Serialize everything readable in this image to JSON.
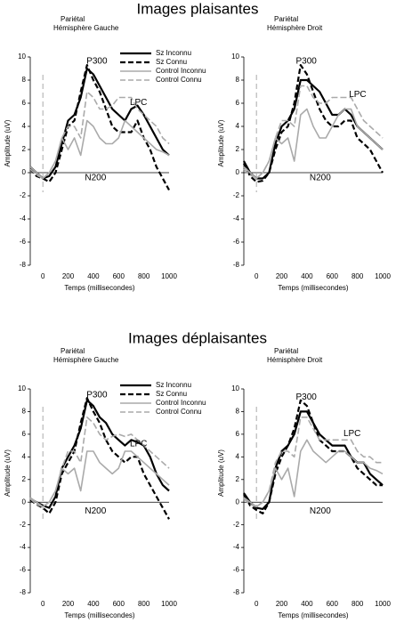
{
  "headings": [
    "Images plaisantes",
    "Images déplaisantes"
  ],
  "chart_data": [
    {
      "type": "line",
      "title": "Pariétal",
      "subtitle": "Hémisphère Gauche",
      "xlabel": "Temps (millisecondes)",
      "ylabel": "Amplitude (uV)",
      "x": [
        -100,
        -50,
        0,
        50,
        100,
        150,
        200,
        250,
        300,
        350,
        400,
        450,
        500,
        550,
        600,
        650,
        700,
        750,
        800,
        850,
        900,
        950,
        1000
      ],
      "xlim": [
        -100,
        1000
      ],
      "ylim": [
        -8,
        10
      ],
      "xticks": [
        0,
        200,
        400,
        600,
        800,
        1000
      ],
      "yticks": [
        -8,
        -6,
        -4,
        -2,
        0,
        2,
        4,
        6,
        8,
        10
      ],
      "legend": "upper right",
      "annotations": [
        "P300",
        "N200",
        "LPC"
      ],
      "series": [
        {
          "name": "Sz Inconnu",
          "color": "#000000",
          "dashed": false,
          "values": [
            0.5,
            0,
            -0.5,
            -0.3,
            0.5,
            2.5,
            4.5,
            5,
            6.5,
            9,
            8.5,
            7.5,
            6.5,
            5.5,
            5,
            4.5,
            5.5,
            5.8,
            5,
            4,
            3,
            2,
            1.5
          ]
        },
        {
          "name": "Sz Connu",
          "color": "#000000",
          "dashed": true,
          "values": [
            0.3,
            -0.3,
            -0.5,
            -0.8,
            0,
            2,
            4,
            4.5,
            7,
            9.3,
            8,
            7,
            5.5,
            4,
            3.5,
            3.5,
            3.5,
            4.5,
            3,
            2,
            0.5,
            -0.5,
            -1.5
          ]
        },
        {
          "name": "Control Inconnu",
          "color": "#aaaaaa",
          "dashed": false,
          "values": [
            0.5,
            0,
            -0.5,
            0,
            1,
            3,
            2,
            3,
            1.5,
            4.5,
            4,
            3,
            2.5,
            2.5,
            3,
            4.5,
            4,
            3.5,
            3,
            2.5,
            2,
            1.8,
            1.5
          ]
        },
        {
          "name": "Control Connu",
          "color": "#aaaaaa",
          "dashed": true,
          "values": [
            0.3,
            -0.2,
            -0.5,
            0,
            1,
            3,
            4,
            4,
            3,
            7,
            6.5,
            5.5,
            5.5,
            5.8,
            6.5,
            6.5,
            6.5,
            5.5,
            5,
            4.5,
            4,
            3,
            2.5
          ]
        }
      ]
    },
    {
      "type": "line",
      "title": "Pariétal",
      "subtitle": "Hémisphère Droit",
      "xlabel": "Temps (millisecondes)",
      "ylabel": "Amplitude (uV)",
      "x": [
        -100,
        -50,
        0,
        50,
        100,
        150,
        200,
        250,
        300,
        350,
        400,
        450,
        500,
        550,
        600,
        650,
        700,
        750,
        800,
        850,
        900,
        950,
        1000
      ],
      "xlim": [
        -100,
        1000
      ],
      "ylim": [
        -8,
        10
      ],
      "xticks": [
        0,
        200,
        400,
        600,
        800,
        1000
      ],
      "yticks": [
        -8,
        -6,
        -4,
        -2,
        0,
        2,
        4,
        6,
        8,
        10
      ],
      "annotations": [
        "P300",
        "N200",
        "LPC"
      ],
      "series": [
        {
          "color": "#000000",
          "dashed": false,
          "values": [
            1,
            0,
            -0.5,
            -0.5,
            0,
            2.5,
            4,
            4.5,
            5.5,
            8,
            8,
            7.5,
            7,
            6,
            5,
            5,
            5.5,
            5,
            4,
            3.5,
            3,
            2.5,
            2
          ]
        },
        {
          "color": "#000000",
          "dashed": true,
          "values": [
            0.8,
            -0.3,
            -0.8,
            -0.7,
            0,
            2,
            3.5,
            4,
            6,
            9.3,
            8.5,
            7,
            5.5,
            4.5,
            4,
            4,
            4.5,
            4.5,
            3,
            2.5,
            2,
            1,
            0
          ]
        },
        {
          "color": "#aaaaaa",
          "dashed": false,
          "values": [
            0.5,
            0,
            -0.5,
            0,
            1,
            3,
            2.5,
            3,
            1,
            5,
            5.5,
            4,
            3,
            3,
            4,
            5,
            5.5,
            5.5,
            4,
            3.5,
            3,
            2.5,
            2
          ]
        },
        {
          "color": "#aaaaaa",
          "dashed": true,
          "values": [
            0.3,
            -0.2,
            -0.5,
            0,
            1,
            3,
            4.5,
            4.5,
            4,
            7.5,
            7.5,
            6.5,
            6,
            6,
            6.5,
            6.5,
            6.5,
            6.5,
            5.5,
            4.5,
            4,
            3.5,
            3
          ]
        }
      ]
    },
    {
      "type": "line",
      "title": "Pariétal",
      "subtitle": "Hémisphère Gauche",
      "xlabel": "Temps (millisecondes)",
      "ylabel": "Amplitude (uV)",
      "x": [
        -100,
        -50,
        0,
        50,
        100,
        150,
        200,
        250,
        300,
        350,
        400,
        450,
        500,
        550,
        600,
        650,
        700,
        750,
        800,
        850,
        900,
        950,
        1000
      ],
      "xlim": [
        -100,
        1000
      ],
      "ylim": [
        -8,
        10
      ],
      "xticks": [
        0,
        200,
        400,
        600,
        800,
        1000
      ],
      "yticks": [
        -8,
        -6,
        -4,
        -2,
        0,
        2,
        4,
        6,
        8,
        10
      ],
      "legend": "upper right",
      "annotations": [
        "P300",
        "N200",
        "LPC"
      ],
      "series": [
        {
          "name": "Sz Inconnu",
          "color": "#000000",
          "dashed": false,
          "values": [
            0.3,
            0,
            -0.3,
            -0.5,
            0.5,
            3,
            4,
            5,
            6.5,
            9,
            8.5,
            7.5,
            7,
            6,
            5.5,
            5,
            5.5,
            5.3,
            5,
            4,
            2.5,
            1.5,
            1
          ]
        },
        {
          "name": "Sz Connu",
          "color": "#000000",
          "dashed": true,
          "values": [
            0.2,
            -0.2,
            -0.5,
            -1,
            0,
            2.5,
            3.5,
            4.5,
            7,
            9.2,
            8,
            7,
            5.5,
            4.5,
            4,
            3.5,
            4,
            4,
            2.5,
            1.5,
            0.5,
            -0.5,
            -1.5
          ]
        },
        {
          "name": "Control Inconnu",
          "color": "#aaaaaa",
          "dashed": false,
          "values": [
            0.4,
            0,
            -0.4,
            0,
            1,
            3,
            2.5,
            3,
            1,
            4.5,
            4.5,
            3.5,
            3,
            2.5,
            3,
            4.5,
            4.5,
            4,
            3.5,
            3,
            2.5,
            2,
            1.5
          ]
        },
        {
          "name": "Control Connu",
          "color": "#aaaaaa",
          "dashed": true,
          "values": [
            0.3,
            -0.2,
            -0.4,
            0,
            1,
            3,
            4.5,
            4.5,
            3.5,
            7.5,
            7,
            6,
            5.5,
            5.8,
            6,
            5.8,
            6,
            5.5,
            5,
            4.5,
            4,
            3.5,
            3
          ]
        }
      ]
    },
    {
      "type": "line",
      "title": "Pariétal",
      "subtitle": "Hémisphère Droit",
      "xlabel": "Temps (millisecondes)",
      "ylabel": "Amplitude (uV)",
      "x": [
        -100,
        -50,
        0,
        50,
        100,
        150,
        200,
        250,
        300,
        350,
        400,
        450,
        500,
        550,
        600,
        650,
        700,
        750,
        800,
        850,
        900,
        950,
        1000
      ],
      "xlim": [
        -100,
        1000
      ],
      "ylim": [
        -8,
        10
      ],
      "xticks": [
        0,
        200,
        400,
        600,
        800,
        1000
      ],
      "yticks": [
        -8,
        -6,
        -4,
        -2,
        0,
        2,
        4,
        6,
        8,
        10
      ],
      "annotations": [
        "P300",
        "N200",
        "LPC"
      ],
      "series": [
        {
          "color": "#000000",
          "dashed": false,
          "values": [
            0.8,
            0,
            -0.5,
            -0.6,
            0,
            3,
            4.5,
            5,
            6,
            8,
            8,
            7,
            6,
            5.5,
            5,
            5,
            5,
            4,
            3.5,
            3.5,
            2.5,
            2,
            1.5
          ]
        },
        {
          "color": "#000000",
          "dashed": true,
          "values": [
            0.7,
            -0.3,
            -0.7,
            -1,
            0,
            2.5,
            4,
            5,
            6.5,
            9,
            8.5,
            7,
            5.5,
            5,
            4.5,
            4.5,
            4.5,
            4,
            3,
            2.5,
            2,
            1.5,
            1.5
          ]
        },
        {
          "color": "#aaaaaa",
          "dashed": false,
          "values": [
            0.4,
            0,
            -0.4,
            0,
            1,
            3,
            2,
            3,
            0.5,
            4.5,
            5.5,
            4.5,
            4,
            3.5,
            4,
            4.5,
            4.5,
            4,
            3.5,
            3.5,
            3,
            2.8,
            2.5
          ]
        },
        {
          "color": "#aaaaaa",
          "dashed": true,
          "values": [
            0.3,
            -0.2,
            -0.4,
            0,
            1,
            3.5,
            4.5,
            4.5,
            4,
            7.5,
            7.5,
            6.5,
            5.5,
            5.5,
            5.5,
            5.5,
            5.5,
            5.5,
            4.5,
            4,
            4,
            3.5,
            3.5
          ]
        }
      ]
    }
  ]
}
